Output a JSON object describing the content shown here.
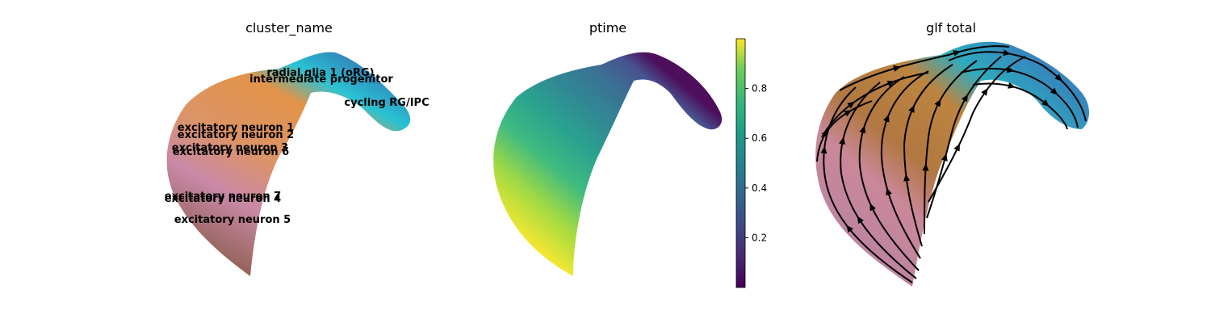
{
  "chart_data": [
    {
      "type": "scatter",
      "title": "cluster_name",
      "cluster_labels": [
        "radial glia 1 (oRG)",
        "intermediate progenitor",
        "cycling RG/IPC",
        "excitatory neuron 1",
        "excitatory neuron 2",
        "excitatory neuron 3",
        "excitatory neuron 6",
        "excitatory neuron 7",
        "excitatory neuron 4",
        "excitatory neuron 5"
      ],
      "legend": "on data",
      "grid": false
    },
    {
      "type": "scatter",
      "title": "ptime",
      "colormap": "viridis",
      "colorbar": {
        "ticks": [
          0.2,
          0.4,
          0.6,
          0.8
        ],
        "range": [
          0,
          1
        ]
      },
      "grid": false
    },
    {
      "type": "scatter",
      "title": "glf total",
      "overlay": "streamlines",
      "grid": false
    }
  ],
  "colors": {
    "cycling": "#1f77b4",
    "progenitor": "#17becf",
    "neuron_upper": "#e07b29",
    "neuron_lower": "#c57fa0",
    "neuron_tip": "#8c564b",
    "streamline": "#000000"
  }
}
